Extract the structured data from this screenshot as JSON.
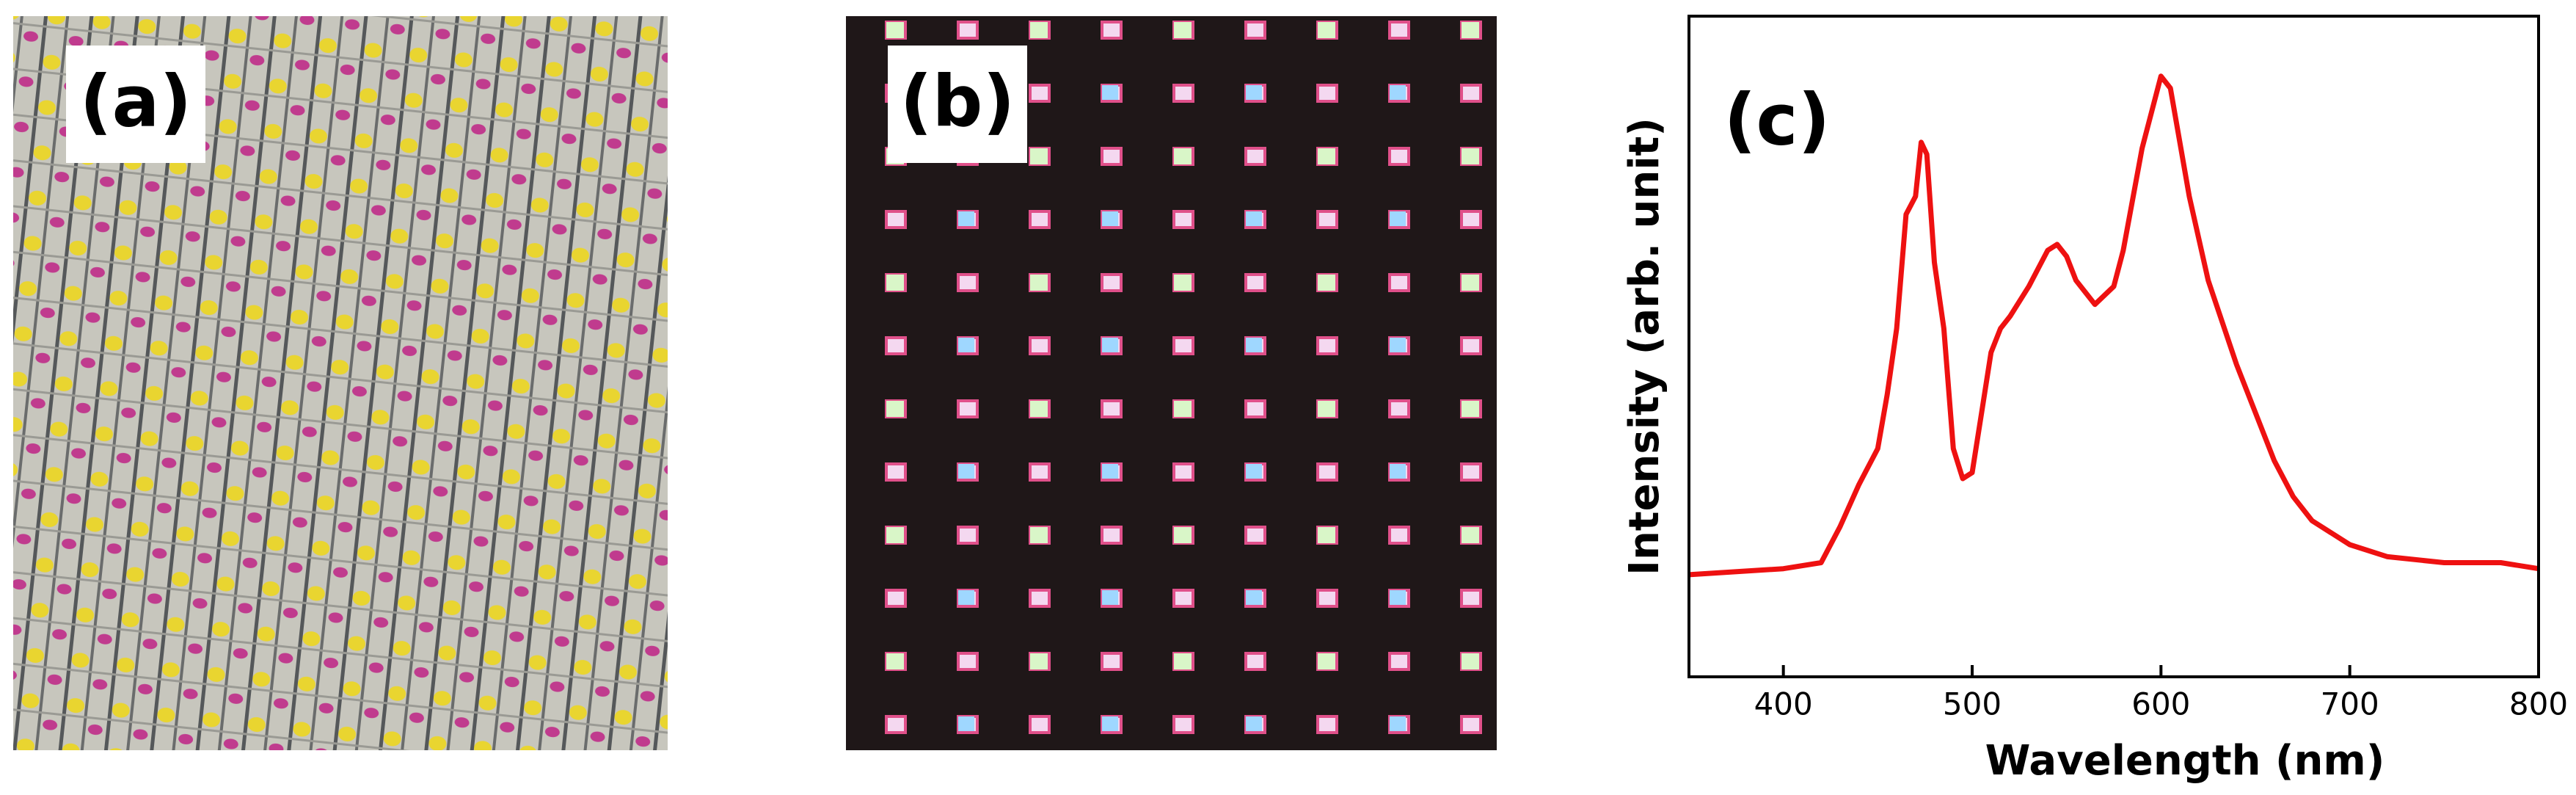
{
  "panel_labels": [
    "(a)",
    "(b)"
  ],
  "chart_data": {
    "type": "line",
    "label": "(c)",
    "x_label": "Wavelength (nm)",
    "y_label": "Intensity (arb. unit)",
    "x": [
      350,
      400,
      420,
      430,
      440,
      450,
      455,
      460,
      465,
      470,
      473,
      476,
      480,
      485,
      490,
      495,
      500,
      505,
      510,
      515,
      520,
      530,
      540,
      545,
      550,
      555,
      565,
      575,
      580,
      590,
      600,
      605,
      615,
      625,
      640,
      650,
      660,
      670,
      680,
      700,
      720,
      750,
      780,
      800
    ],
    "values": [
      0.17,
      0.18,
      0.19,
      0.25,
      0.32,
      0.38,
      0.47,
      0.58,
      0.77,
      0.8,
      0.89,
      0.87,
      0.69,
      0.58,
      0.38,
      0.33,
      0.34,
      0.44,
      0.54,
      0.58,
      0.6,
      0.65,
      0.71,
      0.72,
      0.7,
      0.66,
      0.62,
      0.65,
      0.71,
      0.88,
      1.0,
      0.98,
      0.8,
      0.66,
      0.52,
      0.44,
      0.36,
      0.3,
      0.26,
      0.22,
      0.2,
      0.19,
      0.19,
      0.18
    ],
    "color": "#ee1111",
    "xlim": [
      350,
      800
    ],
    "xticks": [
      400,
      500,
      600,
      700,
      800
    ],
    "ylim": [
      0,
      1.1
    ]
  }
}
